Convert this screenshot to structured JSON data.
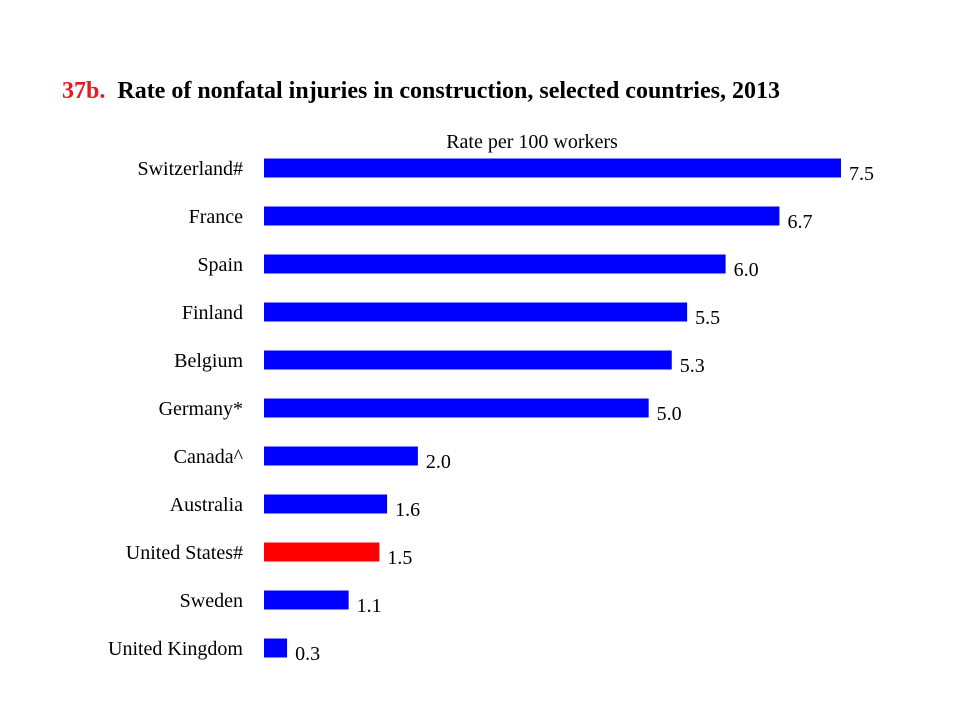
{
  "title": {
    "number": "37b.",
    "text": "Rate of nonfatal injuries in construction, selected countries, 2013",
    "number_color": "#e8191c",
    "text_color": "#000000"
  },
  "chart_data": {
    "type": "bar",
    "orientation": "horizontal",
    "xlabel": "Rate per 100 workers",
    "categories": [
      "Switzerland#",
      "France",
      "Spain",
      "Finland",
      "Belgium",
      "Germany*",
      "Canada^",
      "Australia",
      "United States#",
      "Sweden",
      "United Kingdom"
    ],
    "values": [
      7.5,
      6.7,
      6.0,
      5.5,
      5.3,
      5.0,
      2.0,
      1.6,
      1.5,
      1.1,
      0.3
    ],
    "value_labels": [
      "7.5",
      "6.7",
      "6.0",
      "5.5",
      "5.3",
      "5.0",
      "2.0",
      "1.6",
      "1.5",
      "1.1",
      "0.3"
    ],
    "colors": {
      "default": "#0000ff",
      "highlight": "#ff0000",
      "highlight_category": "United States#"
    },
    "xlim": [
      0,
      7.5
    ],
    "grid": false
  }
}
